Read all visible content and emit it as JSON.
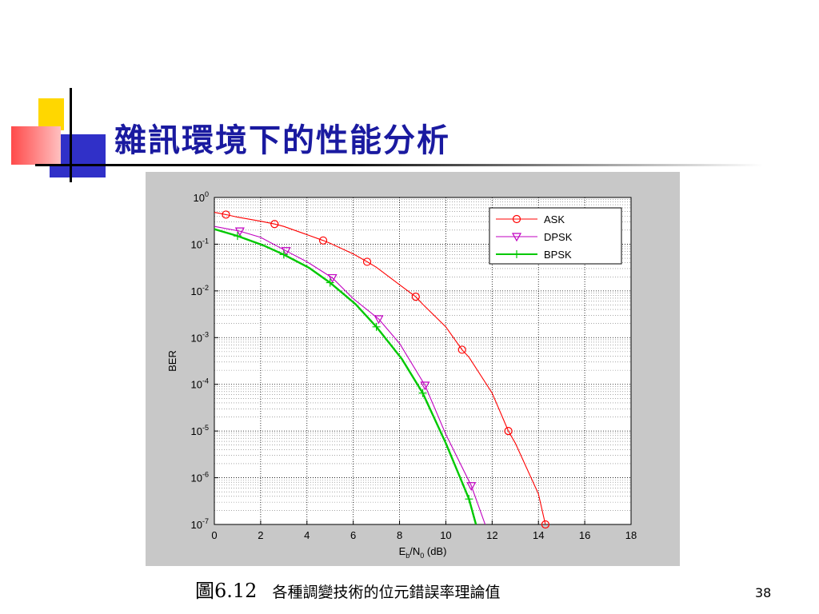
{
  "slide": {
    "title": "雜訊環境下的性能分析",
    "page_number": "38"
  },
  "caption": {
    "number": "圖6.12",
    "text": "各種調變技術的位元錯誤率理論值"
  },
  "colors": {
    "title": "#1a1aa0",
    "panel_background": "#c8c8c8",
    "plot_background": "#ffffff"
  },
  "chart_data": {
    "type": "line",
    "title": "",
    "xlabel": {
      "base": "E",
      "sub1": "b",
      "mid": "/N",
      "sub2": "0",
      "tail": " (dB)"
    },
    "ylabel": "BER",
    "xlim": [
      0,
      18
    ],
    "ylim": [
      1e-07,
      1
    ],
    "yscale": "log",
    "grid": true,
    "legend_position": "top-right",
    "x_ticks": [
      "0",
      "2",
      "4",
      "6",
      "8",
      "10",
      "12",
      "14",
      "16",
      "18"
    ],
    "y_ticks": [
      {
        "base": "10",
        "exp": "0"
      },
      {
        "base": "10",
        "exp": "-1"
      },
      {
        "base": "10",
        "exp": "-2"
      },
      {
        "base": "10",
        "exp": "-3"
      },
      {
        "base": "10",
        "exp": "-4"
      },
      {
        "base": "10",
        "exp": "-5"
      },
      {
        "base": "10",
        "exp": "-6"
      },
      {
        "base": "10",
        "exp": "-7"
      }
    ],
    "series": [
      {
        "name": "ASK",
        "color": "#ff0000",
        "marker": "circle",
        "x": [
          0,
          0.5,
          1,
          2,
          2.6,
          3,
          4,
          4.7,
          5,
          6,
          6.6,
          7,
          8,
          8.7,
          9,
          10,
          10.7,
          11,
          12,
          12.7,
          13,
          14,
          14.3
        ],
        "y": [
          0.48,
          0.43,
          0.38,
          0.31,
          0.27,
          0.24,
          0.16,
          0.12,
          0.105,
          0.062,
          0.042,
          0.032,
          0.0135,
          0.0075,
          0.0052,
          0.0017,
          0.00055,
          0.00038,
          6.5e-05,
          1e-05,
          5.5e-06,
          4.5e-07,
          1e-07
        ]
      },
      {
        "name": "DPSK",
        "color": "#c000c0",
        "marker": "triangle-down",
        "x": [
          0,
          1.1,
          2,
          3.1,
          4,
          5.1,
          6,
          7.1,
          8,
          9.1,
          10,
          11.1,
          11.7
        ],
        "y": [
          0.24,
          0.19,
          0.14,
          0.072,
          0.042,
          0.019,
          0.0068,
          0.0025,
          0.00075,
          9.5e-05,
          8.5e-06,
          6.7e-07,
          1e-07
        ]
      },
      {
        "name": "BPSK",
        "color": "#00c800",
        "marker": "plus",
        "x": [
          0,
          1,
          2.1,
          3,
          4.1,
          5,
          6.1,
          7,
          8.1,
          9,
          10,
          11,
          11.3
        ],
        "y": [
          0.21,
          0.15,
          0.095,
          0.06,
          0.031,
          0.015,
          0.0052,
          0.0017,
          0.00035,
          6.5e-05,
          5.5e-06,
          3.5e-07,
          1e-07
        ]
      }
    ]
  }
}
